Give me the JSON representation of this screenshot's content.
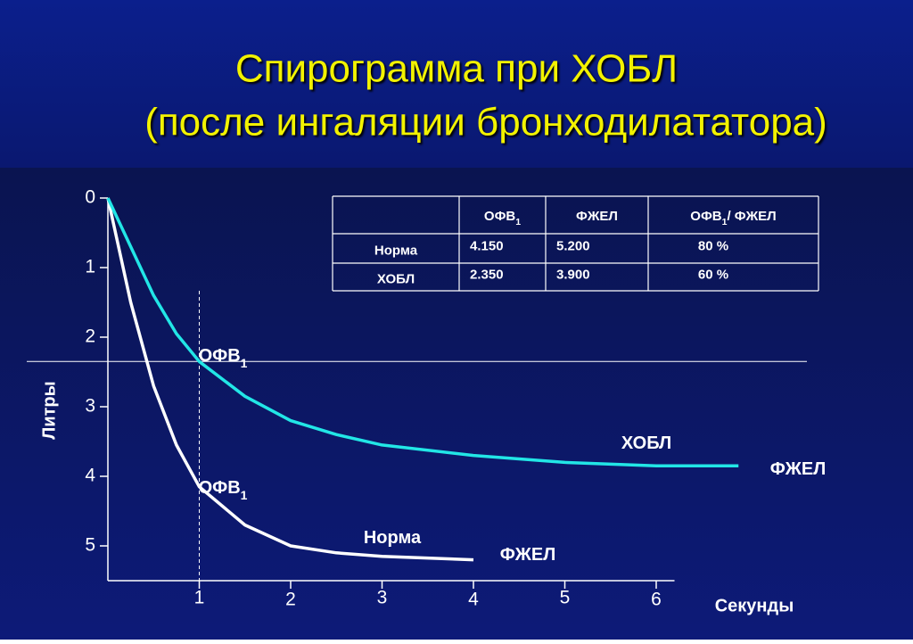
{
  "title": [
    "Спирограмма  при ХОБЛ",
    "(после ингаляции бронходилататора)"
  ],
  "table": {
    "header": [
      [],
      [
        {
          "text": "ОФВ"
        },
        {
          "text": "1",
          "sub": true
        }
      ],
      [
        {
          "text": "ФЖЕЛ"
        }
      ],
      [
        {
          "text": "ОФВ"
        },
        {
          "text": "1",
          "sub": true
        },
        {
          "text": "/ ФЖЕЛ"
        }
      ]
    ],
    "rows": [
      [
        "Норма",
        "4.150",
        "5.200",
        "80 %"
      ],
      [
        "ХОБЛ",
        "2.350",
        "3.900",
        "60 %"
      ]
    ]
  },
  "chart_data": {
    "type": "line",
    "y_label": "Литры",
    "x_label": "Секунды",
    "x": [
      0,
      0.25,
      0.5,
      0.75,
      1,
      1.5,
      2,
      2.5,
      3,
      4,
      5,
      6,
      6.9
    ],
    "series": [
      {
        "name": "Норма",
        "color": "#ffffff",
        "values": [
          0,
          1.5,
          2.7,
          3.55,
          4.15,
          4.7,
          5.0,
          5.1,
          5.15,
          5.2,
          null,
          null,
          null
        ]
      },
      {
        "name": "ХОБЛ",
        "color": "#22e6e6",
        "values": [
          0,
          0.7,
          1.4,
          1.95,
          2.35,
          2.85,
          3.2,
          3.4,
          3.55,
          3.7,
          3.8,
          3.85,
          3.85
        ]
      }
    ],
    "xlim": [
      0,
      6.2
    ],
    "xticks": [
      1,
      2,
      3,
      4,
      5,
      6
    ],
    "ylim": [
      0,
      5.5
    ],
    "yticks": [
      0,
      1,
      2,
      3,
      4,
      5
    ],
    "y_reversed": true,
    "hline": 2.35,
    "vline": 1,
    "annotations": [
      [
        {
          "text": "ОФВ"
        },
        {
          "text": "1",
          "sub": true
        }
      ],
      [
        {
          "text": "ОФВ"
        },
        {
          "text": "1",
          "sub": true
        }
      ],
      [
        {
          "text": "ХОБЛ"
        }
      ],
      [
        {
          "text": "Норма"
        }
      ],
      [
        {
          "text": "ФЖЕЛ"
        }
      ],
      [
        {
          "text": "ФЖЕЛ"
        }
      ]
    ]
  }
}
